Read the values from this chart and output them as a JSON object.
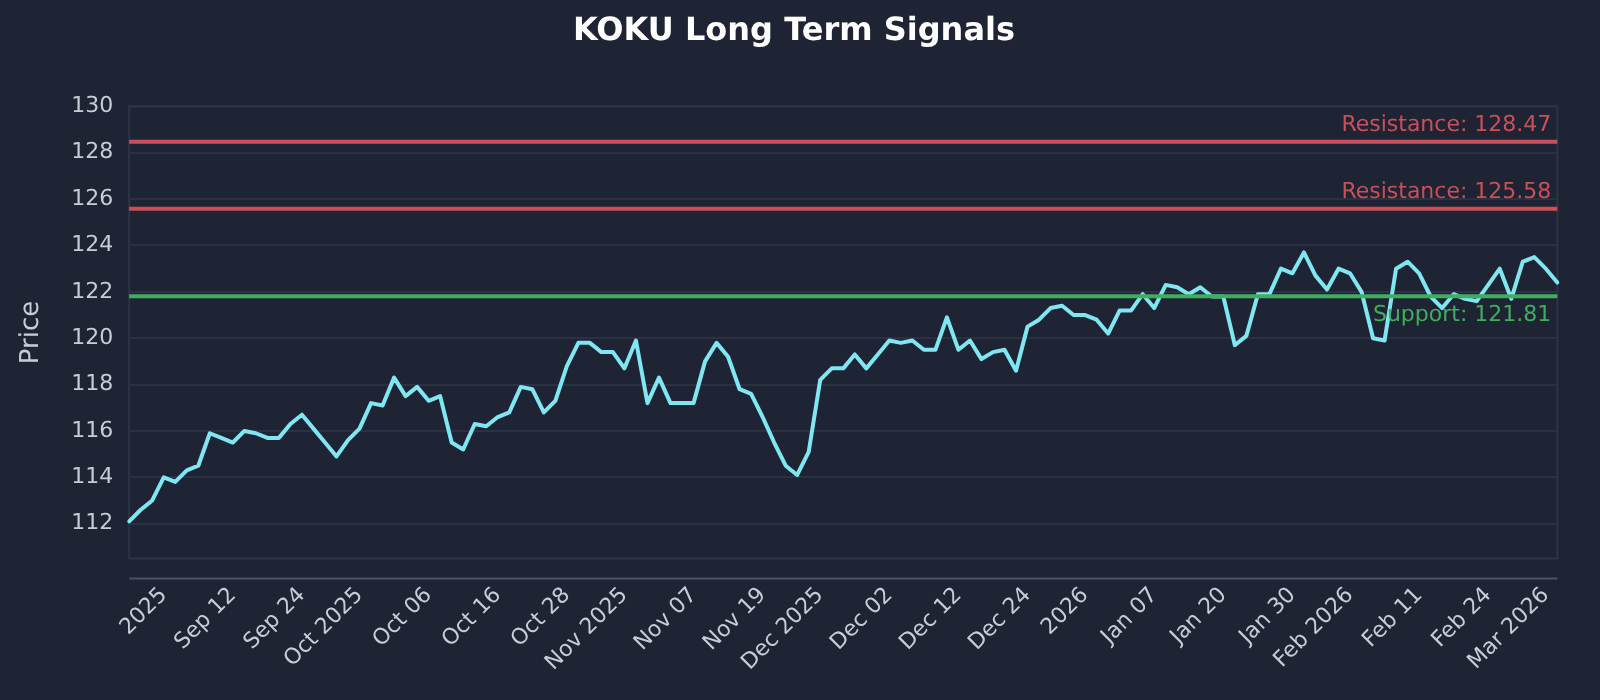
{
  "chart_data": {
    "type": "line",
    "title": "KOKU Long Term Signals",
    "ylabel": "Price",
    "categories": [
      null,
      null,
      null,
      "2025",
      null,
      null,
      null,
      null,
      null,
      "Sep 12",
      null,
      null,
      null,
      null,
      null,
      "Sep 24",
      null,
      null,
      null,
      null,
      "Oct 2025",
      null,
      null,
      null,
      null,
      null,
      "Oct 06",
      null,
      null,
      null,
      null,
      null,
      "Oct 16",
      null,
      null,
      null,
      null,
      null,
      "Oct 28",
      null,
      null,
      null,
      null,
      "Nov 2025",
      null,
      null,
      null,
      null,
      null,
      "Nov 07",
      null,
      null,
      null,
      null,
      null,
      "Nov 19",
      null,
      null,
      null,
      null,
      "Dec 2025",
      null,
      null,
      null,
      null,
      null,
      "Dec 02",
      null,
      null,
      null,
      null,
      null,
      "Dec 12",
      null,
      null,
      null,
      null,
      null,
      "Dec 24",
      null,
      null,
      null,
      null,
      "2026",
      null,
      null,
      null,
      null,
      null,
      "Jan 07",
      null,
      null,
      null,
      null,
      null,
      "Jan 20",
      null,
      null,
      null,
      null,
      null,
      "Jan 30",
      null,
      null,
      null,
      null,
      "Feb 2026",
      null,
      null,
      null,
      null,
      null,
      "Feb 11",
      null,
      null,
      null,
      null,
      null,
      "Feb 24",
      null,
      null,
      null,
      null,
      "Mar 2026",
      null
    ],
    "series": [
      {
        "color": "#7fe6f2",
        "values": [
          112.1,
          112.6,
          113.0,
          114.0,
          113.8,
          114.3,
          114.5,
          115.9,
          115.7,
          115.5,
          116.0,
          115.9,
          115.7,
          115.7,
          116.3,
          116.7,
          116.1,
          115.5,
          114.9,
          115.6,
          116.1,
          117.2,
          117.1,
          118.3,
          117.5,
          117.9,
          117.3,
          117.5,
          115.5,
          115.2,
          116.3,
          116.2,
          116.6,
          116.8,
          117.9,
          117.8,
          116.8,
          117.3,
          118.8,
          119.8,
          119.8,
          119.4,
          119.4,
          118.7,
          119.9,
          117.2,
          118.3,
          117.2,
          117.2,
          117.2,
          119.0,
          119.8,
          119.2,
          117.8,
          117.6,
          116.6,
          115.5,
          114.5,
          114.1,
          115.1,
          118.2,
          118.7,
          118.7,
          119.3,
          118.7,
          119.3,
          119.9,
          119.8,
          119.9,
          119.5,
          119.5,
          120.9,
          119.5,
          119.9,
          119.1,
          119.4,
          119.5,
          118.6,
          120.5,
          120.8,
          121.3,
          121.4,
          121.0,
          121.0,
          120.8,
          120.2,
          121.2,
          121.2,
          121.9,
          121.3,
          122.3,
          122.2,
          121.9,
          122.2,
          121.8,
          121.8,
          119.7,
          120.1,
          121.9,
          121.9,
          123.0,
          122.8,
          123.7,
          122.7,
          122.1,
          123.0,
          122.8,
          122.0,
          120.0,
          119.9,
          123.0,
          123.3,
          122.8,
          121.8,
          121.3,
          121.9,
          121.7,
          121.6,
          122.3,
          123.0,
          121.7,
          123.3,
          123.5,
          123.0,
          122.4
        ]
      }
    ],
    "ylim": [
      110.5,
      130
    ],
    "yticks": [
      112,
      114,
      116,
      118,
      120,
      122,
      124,
      126,
      128,
      130
    ],
    "grid": "y",
    "marker": "none",
    "line_style": "solid",
    "ref_lines": [
      {
        "axis": "y",
        "value": 128.47,
        "label": "Resistance: 128.47",
        "color": "#c9505a"
      },
      {
        "axis": "y",
        "value": 125.58,
        "label": "Resistance: 125.58",
        "color": "#c9505a"
      },
      {
        "axis": "y",
        "value": 121.81,
        "label": "Support: 121.81",
        "color": "#3fae5e"
      }
    ]
  }
}
